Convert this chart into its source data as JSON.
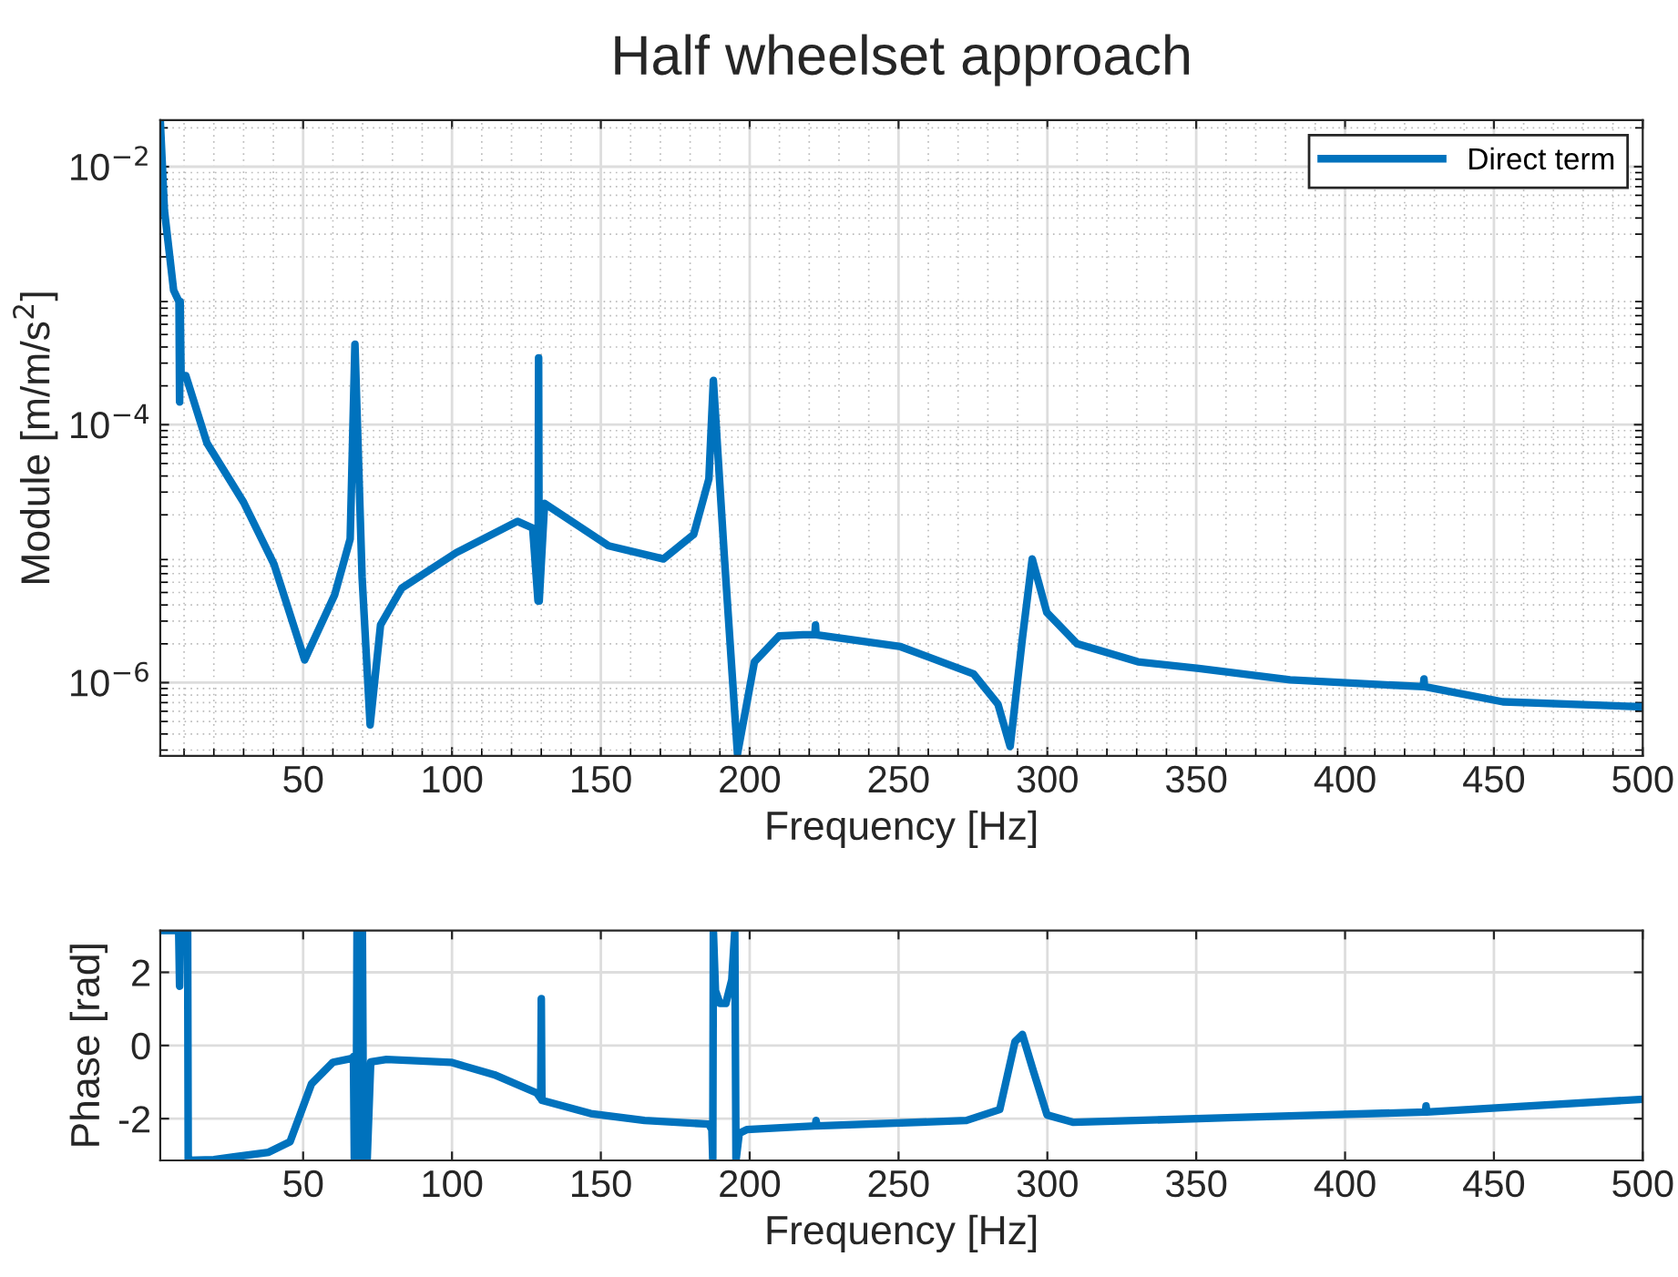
{
  "chart_data": [
    {
      "type": "line",
      "title": "Half wheelset approach",
      "xlabel": "Frequency [Hz]",
      "ylabel": "Module [m/m/s$^{2}$]",
      "log": "y",
      "grid": true,
      "legend": "top right",
      "line_style": "solid",
      "marker": "none",
      "xlim": [
        2,
        500
      ],
      "xticks": [
        50,
        100,
        150,
        200,
        250,
        300,
        350,
        400,
        450,
        500
      ],
      "ylim": [
        2.7e-07,
        0.023
      ],
      "yticks": [
        {
          "value": 0.01,
          "label": "10$^{−2}$"
        },
        {
          "value": 0.0001,
          "label": "10$^{−4}$"
        },
        {
          "value": 1e-06,
          "label": "10$^{−6}$"
        }
      ],
      "series": [
        {
          "name": "Direct term",
          "color": "#0072bd",
          "x": [
            2,
            3.4,
            6.5,
            8.3,
            8.5,
            8.7,
            9,
            10.6,
            17.7,
            30,
            40.2,
            50.5,
            60.6,
            65.8,
            67.4,
            69.8,
            72.5,
            76,
            83.1,
            101.5,
            122,
            127.1,
            128.9,
            129.1,
            129.3,
            131.1,
            152.6,
            171,
            181.2,
            186.3,
            187.8,
            191.4,
            195.9,
            201.6,
            209.9,
            218,
            221.9,
            222.1,
            222.3,
            250.7,
            275.2,
            283.4,
            287.5,
            291.6,
            294.9,
            299.8,
            310,
            330.4,
            350.9,
            381.5,
            426.3,
            426.5,
            426.7,
            453,
            500
          ],
          "values": [
            0.023,
            0.0046,
            0.0011,
            0.0009,
            0.00015,
            0.0009,
            0.00024,
            0.00024,
            7.2e-05,
            2.5e-05,
            8.3e-06,
            1.5e-06,
            4.8e-06,
            1.3e-05,
            0.00042,
            6.6e-06,
            4.7e-07,
            2.8e-06,
            5.4e-06,
            1.02e-05,
            1.78e-05,
            1.58e-05,
            4.3e-06,
            0.00033,
            4.3e-06,
            2.45e-05,
            1.15e-05,
            9.1e-06,
            1.41e-05,
            3.8e-05,
            0.00022,
            1.02e-05,
            2.8e-07,
            1.45e-06,
            2.3e-06,
            2.35e-06,
            2.35e-06,
            2.8e-06,
            2.35e-06,
            1.9e-06,
            1.17e-06,
            6.8e-07,
            3.2e-07,
            2.2e-06,
            9.1e-06,
            3.5e-06,
            2e-06,
            1.45e-06,
            1.29e-06,
            1.05e-06,
            9.3e-07,
            1.07e-06,
            9.3e-07,
            7.1e-07,
            6.5e-07
          ]
        }
      ]
    },
    {
      "type": "line",
      "xlabel": "Frequency [Hz]",
      "ylabel": "Phase [rad]",
      "grid": true,
      "line_style": "solid",
      "marker": "none",
      "xlim": [
        2,
        500
      ],
      "xticks": [
        50,
        100,
        150,
        200,
        250,
        300,
        350,
        400,
        450,
        500
      ],
      "ylim": [
        -3.1416,
        3.1416
      ],
      "yticks": [
        {
          "value": -2,
          "label": "-2"
        },
        0,
        2
      ],
      "series": [
        {
          "color": "#0072bd",
          "x": [
            2,
            8.2,
            8.5,
            8.8,
            11.2,
            11.4,
            20,
            38.4,
            45.6,
            52.8,
            60,
            66.6,
            66.9,
            67.2,
            67.8,
            68.1,
            69.9,
            70.3,
            71.5,
            72.7,
            78,
            99.7,
            114.2,
            128.5,
            129.8,
            130,
            130.2,
            146.6,
            164.7,
            186.2,
            187.3,
            187.6,
            187.8,
            188.5,
            190,
            192,
            194,
            195,
            195.4,
            196.5,
            199,
            222,
            222.3,
            222.6,
            272.8,
            284,
            289.1,
            291.6,
            295.3,
            299.9,
            308.8,
            363,
            427,
            427.2,
            427.4,
            500
          ],
          "values": [
            3.14,
            3.14,
            1.62,
            3.14,
            3.14,
            -3.14,
            -3.12,
            -2.92,
            -2.63,
            -1.05,
            -0.46,
            -0.35,
            -0.3,
            -3.14,
            -3.14,
            3.14,
            3.14,
            -3.14,
            -3.14,
            -0.45,
            -0.38,
            -0.46,
            -0.8,
            -1.3,
            -1.45,
            1.28,
            -1.5,
            -1.86,
            -2.05,
            -2.15,
            -2.3,
            -3.1,
            3.14,
            1.5,
            1.15,
            1.15,
            1.8,
            3.14,
            -3.14,
            -2.4,
            -2.3,
            -2.2,
            -2.05,
            -2.2,
            -2.05,
            -1.75,
            0.1,
            0.3,
            -0.7,
            -1.9,
            -2.1,
            -1.97,
            -1.82,
            -1.65,
            -1.82,
            -1.47
          ]
        }
      ]
    }
  ]
}
